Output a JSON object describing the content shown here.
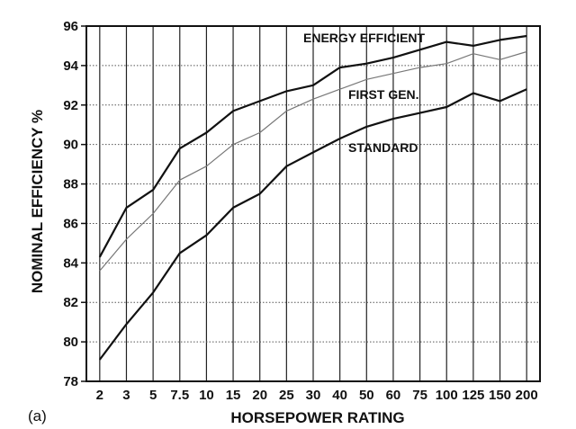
{
  "chart_data": {
    "type": "line",
    "panel_label": "(a)",
    "xlabel": "HORSEPOWER RATING",
    "ylabel": "NOMINAL EFFICIENCY %",
    "categories": [
      "2",
      "3",
      "5",
      "7.5",
      "10",
      "15",
      "20",
      "25",
      "30",
      "40",
      "50",
      "60",
      "75",
      "100",
      "125",
      "150",
      "200"
    ],
    "ylim": [
      78,
      96
    ],
    "yticks": [
      78,
      80,
      82,
      84,
      86,
      88,
      90,
      92,
      94,
      96
    ],
    "grid": true,
    "series": [
      {
        "name": "ENERGY EFFICIENT",
        "values": [
          84.3,
          86.8,
          87.7,
          89.8,
          90.6,
          91.7,
          92.2,
          92.7,
          93.0,
          93.9,
          94.1,
          94.4,
          94.8,
          95.2,
          95.0,
          95.3,
          95.5
        ],
        "color": "#111111"
      },
      {
        "name": "FIRST GEN.",
        "values": [
          83.6,
          85.2,
          86.5,
          88.2,
          88.9,
          90.0,
          90.6,
          91.7,
          92.3,
          92.8,
          93.3,
          93.6,
          93.9,
          94.1,
          94.6,
          94.3,
          94.7
        ],
        "color": "#777777"
      },
      {
        "name": "STANDARD",
        "values": [
          79.1,
          80.9,
          82.5,
          84.5,
          85.4,
          86.8,
          87.5,
          88.9,
          89.6,
          90.3,
          90.9,
          91.3,
          91.6,
          91.9,
          92.6,
          92.2,
          92.8
        ],
        "color": "#111111"
      }
    ]
  }
}
